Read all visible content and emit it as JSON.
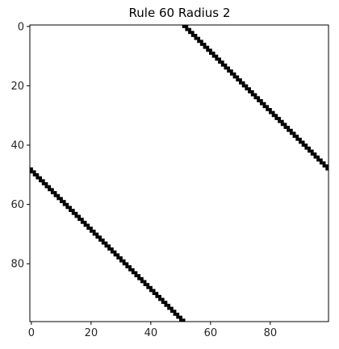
{
  "chart_data": {
    "type": "heatmap",
    "title": "Rule 60 Radius 2",
    "xlabel": "",
    "ylabel": "",
    "grid_size": [
      100,
      100
    ],
    "xlim": [
      -0.5,
      99.5
    ],
    "ylim": [
      99.5,
      -0.5
    ],
    "x_ticks": [
      0,
      20,
      40,
      60,
      80
    ],
    "y_ticks": [
      0,
      20,
      40,
      60,
      80
    ],
    "x_tick_labels": [
      "0",
      "20",
      "40",
      "60",
      "80"
    ],
    "y_tick_labels": [
      "0",
      "20",
      "40",
      "60",
      "80"
    ],
    "colors": {
      "on": "#000000",
      "off": "#ffffff"
    },
    "grid": false
  }
}
